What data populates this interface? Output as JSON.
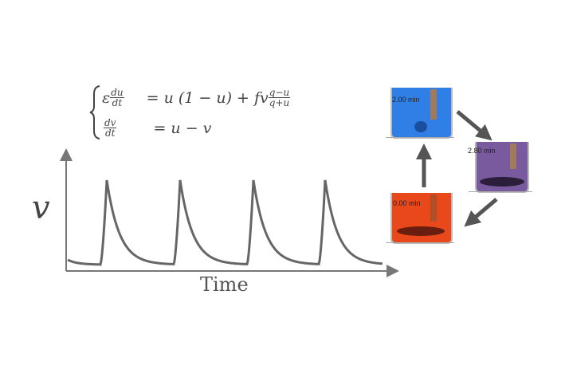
{
  "equations": {
    "row1": {
      "lhs_coef": "ε",
      "lhs_num": "du",
      "lhs_den": "dt",
      "rhs": "= u (1 − u) + fv",
      "rhs_num": "q−u",
      "rhs_den": "q+u"
    },
    "row2": {
      "lhs_num": "dv",
      "lhs_den": "dt",
      "rhs": "= u − v"
    }
  },
  "plot": {
    "ylabel": "v",
    "xlabel": "Time",
    "line_color": "#666666"
  },
  "beakers": [
    {
      "label": "2.00 min",
      "color": "#2f7fe6"
    },
    {
      "label": "2.80 min",
      "color": "#7a5a9e"
    },
    {
      "label": "0.00 min",
      "color": "#e8481a"
    }
  ],
  "arrow_color": "#555555"
}
